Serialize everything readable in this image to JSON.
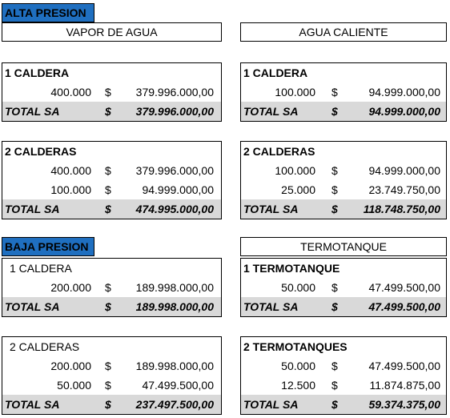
{
  "labels": {
    "alta": "ALTA PRESION",
    "baja": "BAJA PRESION",
    "vapor": "VAPOR DE AGUA",
    "agua": "AGUA CALIENTE",
    "termo": "TERMOTANQUE"
  },
  "blocks": [
    {
      "title": "1 CALDERA",
      "rows": [
        {
          "qty": "400.000",
          "currency": "$",
          "amount": "379.996.000,00"
        }
      ],
      "total": {
        "label": "TOTAL SA",
        "currency": "$",
        "amount": "379.996.000,00"
      }
    },
    {
      "title": "1 CALDERA",
      "rows": [
        {
          "qty": "100.000",
          "currency": "$",
          "amount": "94.999.000,00"
        }
      ],
      "total": {
        "label": "TOTAL SA",
        "currency": "$",
        "amount": "94.999.000,00"
      }
    },
    {
      "title": "2 CALDERAS",
      "rows": [
        {
          "qty": "400.000",
          "currency": "$",
          "amount": "379.996.000,00"
        },
        {
          "qty": "100.000",
          "currency": "$",
          "amount": "94.999.000,00"
        }
      ],
      "total": {
        "label": "TOTAL SA",
        "currency": "$",
        "amount": "474.995.000,00"
      }
    },
    {
      "title": "2 CALDERAS",
      "rows": [
        {
          "qty": "100.000",
          "currency": "$",
          "amount": "94.999.000,00"
        },
        {
          "qty": "25.000",
          "currency": "$",
          "amount": "23.749.750,00"
        }
      ],
      "total": {
        "label": "TOTAL SA",
        "currency": "$",
        "amount": "118.748.750,00"
      }
    },
    {
      "title": "1 CALDERA",
      "rows": [
        {
          "qty": "200.000",
          "currency": "$",
          "amount": "189.998.000,00"
        }
      ],
      "total": {
        "label": "TOTAL SA",
        "currency": "$",
        "amount": "189.998.000,00"
      }
    },
    {
      "title": "1 TERMOTANQUE",
      "rows": [
        {
          "qty": "50.000",
          "currency": "$",
          "amount": "47.499.500,00"
        }
      ],
      "total": {
        "label": "TOTAL SA",
        "currency": "$",
        "amount": "47.499.500,00"
      }
    },
    {
      "title": "2 CALDERAS",
      "rows": [
        {
          "qty": "200.000",
          "currency": "$",
          "amount": "189.998.000,00"
        },
        {
          "qty": "50.000",
          "currency": "$",
          "amount": "47.499.500,00"
        }
      ],
      "total": {
        "label": "TOTAL SA",
        "currency": "$",
        "amount": "237.497.500,00"
      }
    },
    {
      "title": "2 TERMOTANQUES",
      "rows": [
        {
          "qty": "50.000",
          "currency": "$",
          "amount": "47.499.500,00"
        },
        {
          "qty": "12.500",
          "currency": "$",
          "amount": "11.874.875,00"
        }
      ],
      "total": {
        "label": "TOTAL SA",
        "currency": "$",
        "amount": "59.374.375,00"
      }
    }
  ]
}
